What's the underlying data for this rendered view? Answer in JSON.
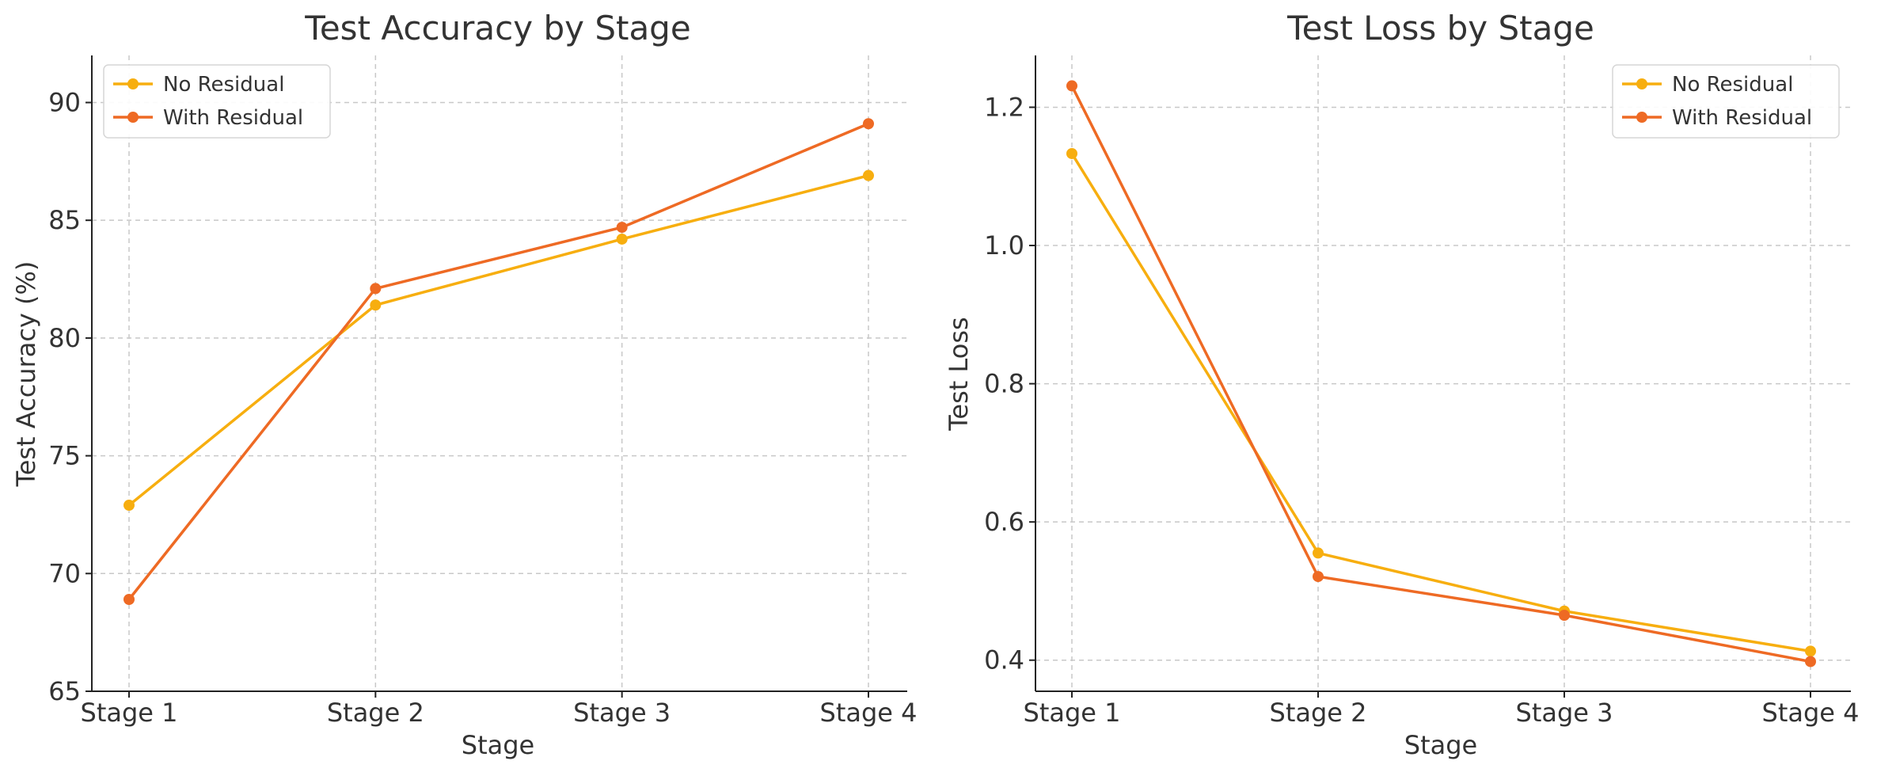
{
  "colors": {
    "no_residual": "#F7AE0F",
    "with_residual": "#EE6A24",
    "grid": "#C8C8C8",
    "axis": "#222222",
    "text": "#333333"
  },
  "chart_data": [
    {
      "type": "line",
      "title": "Test Accuracy by Stage",
      "xlabel": "Stage",
      "ylabel": "Test Accuracy (%)",
      "categories": [
        "Stage 1",
        "Stage 2",
        "Stage 3",
        "Stage 4"
      ],
      "ylim": [
        65,
        92
      ],
      "yticks": [
        65,
        70,
        75,
        80,
        85,
        90
      ],
      "ytick_labels": [
        "65",
        "70",
        "75",
        "80",
        "85",
        "90"
      ],
      "grid": true,
      "legend_position": "top-left",
      "series": [
        {
          "name": "No Residual",
          "values": [
            72.9,
            81.4,
            84.2,
            86.9
          ],
          "color": "#F7AE0F"
        },
        {
          "name": "With Residual",
          "values": [
            68.9,
            82.1,
            84.7,
            89.1
          ],
          "color": "#EE6A24"
        }
      ]
    },
    {
      "type": "line",
      "title": "Test Loss by Stage",
      "xlabel": "Stage",
      "ylabel": "Test Loss",
      "categories": [
        "Stage 1",
        "Stage 2",
        "Stage 3",
        "Stage 4"
      ],
      "ylim": [
        0.355,
        1.275
      ],
      "yticks": [
        0.4,
        0.6,
        0.8,
        1.0,
        1.2
      ],
      "ytick_labels": [
        "0.4",
        "0.6",
        "0.8",
        "1.0",
        "1.2"
      ],
      "grid": true,
      "legend_position": "top-right",
      "series": [
        {
          "name": "No Residual",
          "values": [
            1.133,
            0.555,
            0.471,
            0.413
          ],
          "color": "#F7AE0F"
        },
        {
          "name": "With Residual",
          "values": [
            1.231,
            0.521,
            0.465,
            0.398
          ],
          "color": "#EE6A24"
        }
      ]
    }
  ]
}
